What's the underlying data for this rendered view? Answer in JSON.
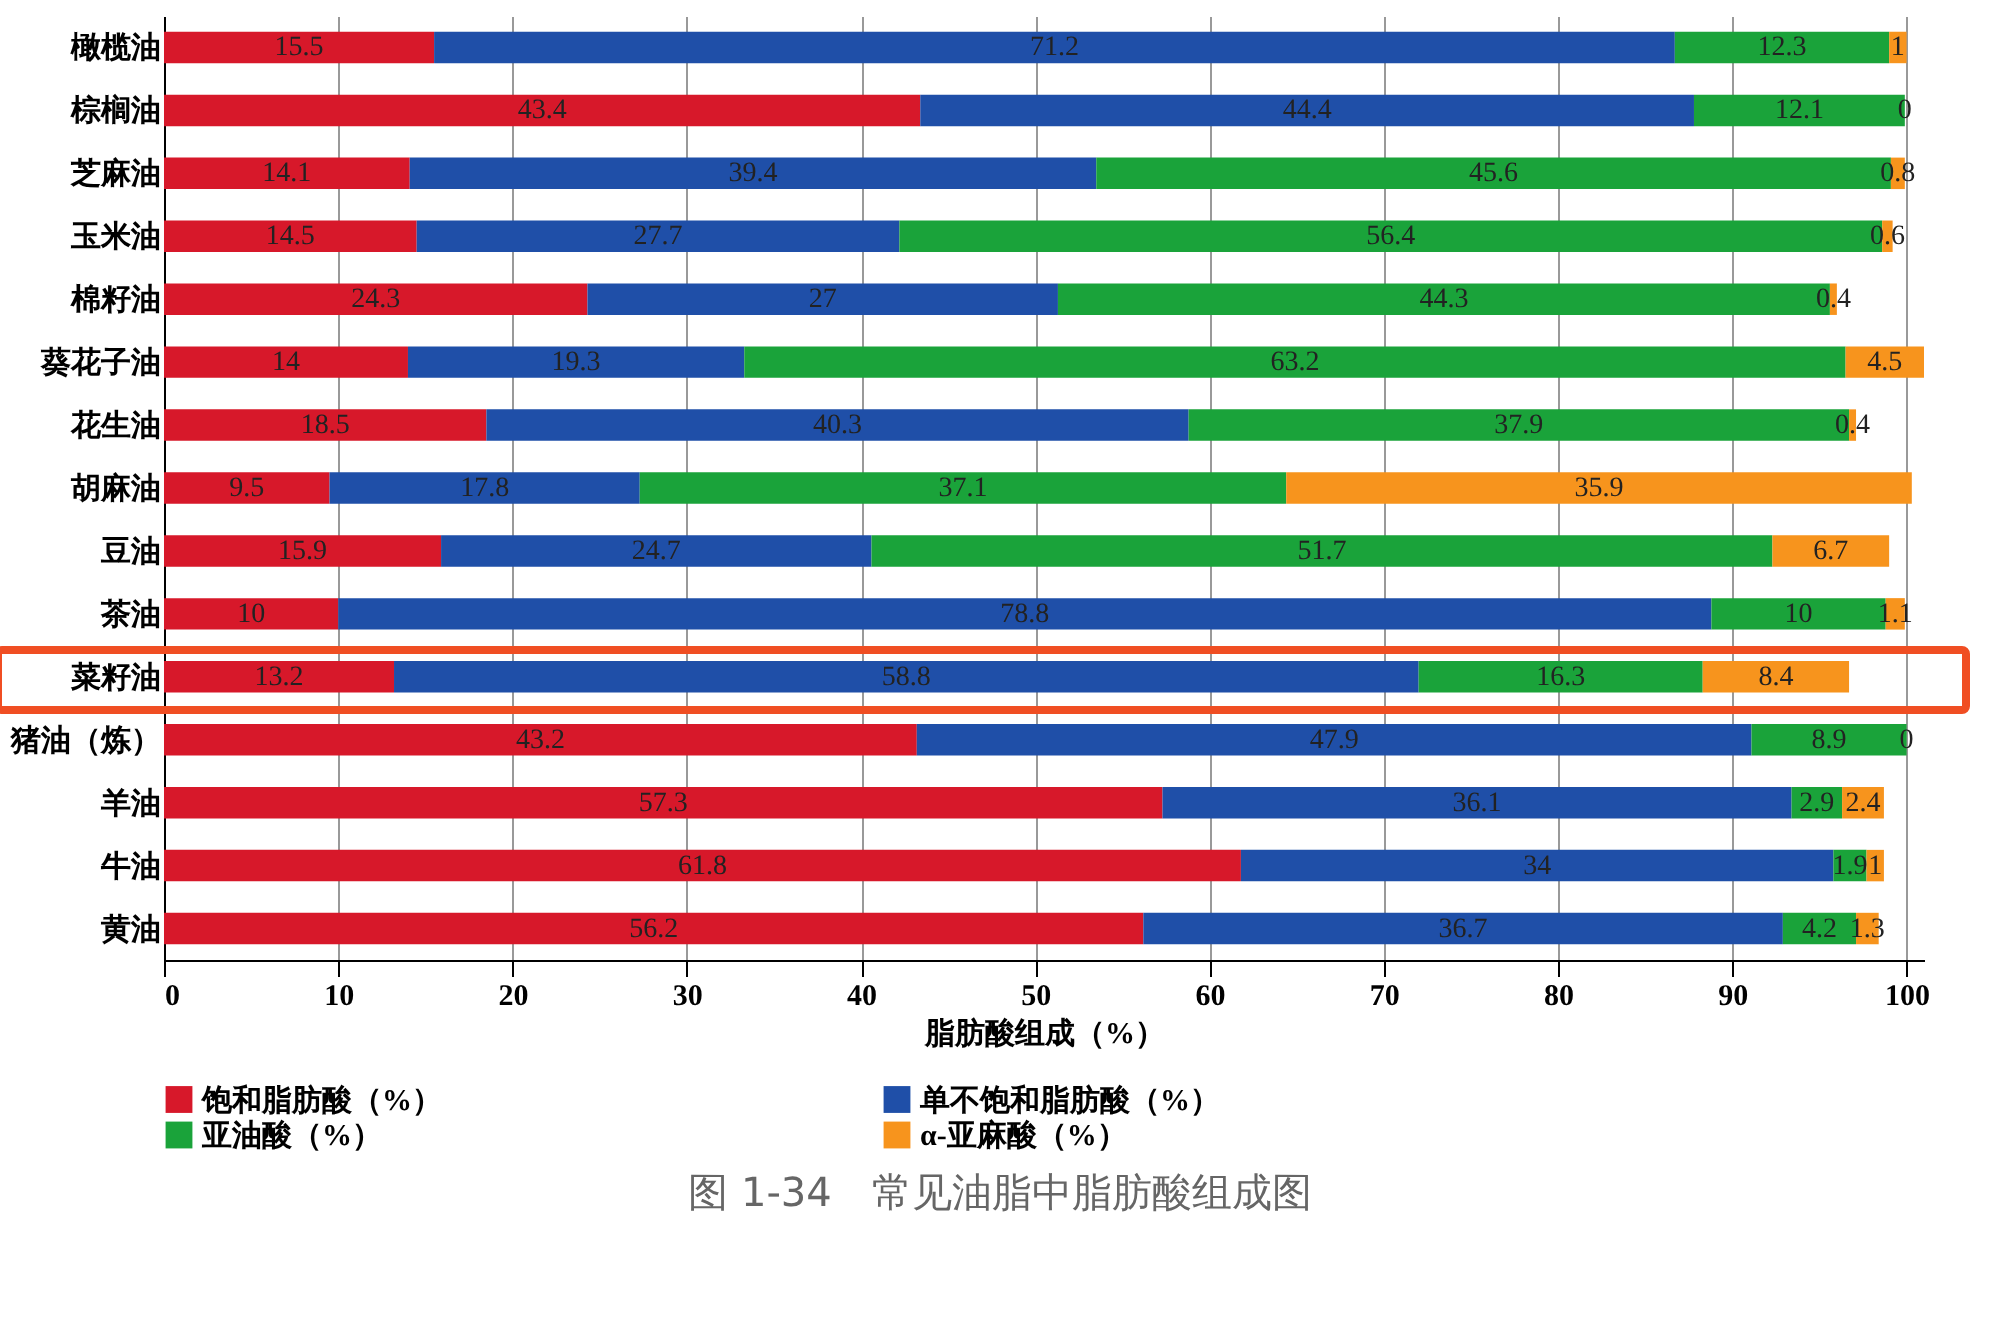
{
  "chart_data": {
    "type": "bar",
    "orientation": "horizontal",
    "stacked": true,
    "data_labels": true,
    "grid": "x",
    "legend": "bottom",
    "xlabel": "脂肪酸组成（%）",
    "annotations": [
      "图 1-34　常见油脂中脂肪酸组成图"
    ],
    "categories": [
      "橄榄油",
      "棕榈油",
      "芝麻油",
      "玉米油",
      "棉籽油",
      "葵花子油",
      "花生油",
      "胡麻油",
      "豆油",
      "茶油",
      "菜籽油",
      "猪油（炼）",
      "羊油",
      "牛油",
      "黄油"
    ],
    "xlim": [
      0,
      101
    ],
    "xticks": [
      0,
      10,
      20,
      30,
      40,
      50,
      60,
      70,
      80,
      90,
      100
    ],
    "series": [
      {
        "name": "饱和脂肪酸（%）",
        "color": "#d7182a",
        "values": [
          15.5,
          43.4,
          14.1,
          14.5,
          24.3,
          14,
          18.5,
          9.5,
          15.9,
          10,
          13.2,
          43.2,
          57.3,
          61.8,
          56.2
        ]
      },
      {
        "name": "单不饱和脂肪酸（%）",
        "color": "#1f4fa8",
        "values": [
          71.2,
          44.4,
          39.4,
          27.7,
          27,
          19.3,
          40.3,
          17.8,
          24.7,
          78.8,
          58.8,
          47.9,
          36.1,
          34,
          36.7
        ]
      },
      {
        "name": "亚油酸（%）",
        "color": "#1aa33a",
        "values": [
          12.3,
          12.1,
          45.6,
          56.4,
          44.3,
          63.2,
          37.9,
          37.1,
          51.7,
          10,
          16.3,
          8.9,
          2.9,
          1.9,
          4.2
        ]
      },
      {
        "name": "α-亚麻酸（%）",
        "color": "#f7941d",
        "values": [
          1,
          0,
          0.8,
          0.6,
          0.4,
          4.5,
          0.4,
          35.9,
          6.7,
          1.1,
          8.4,
          0,
          2.4,
          1,
          1.3
        ]
      }
    ]
  }
}
